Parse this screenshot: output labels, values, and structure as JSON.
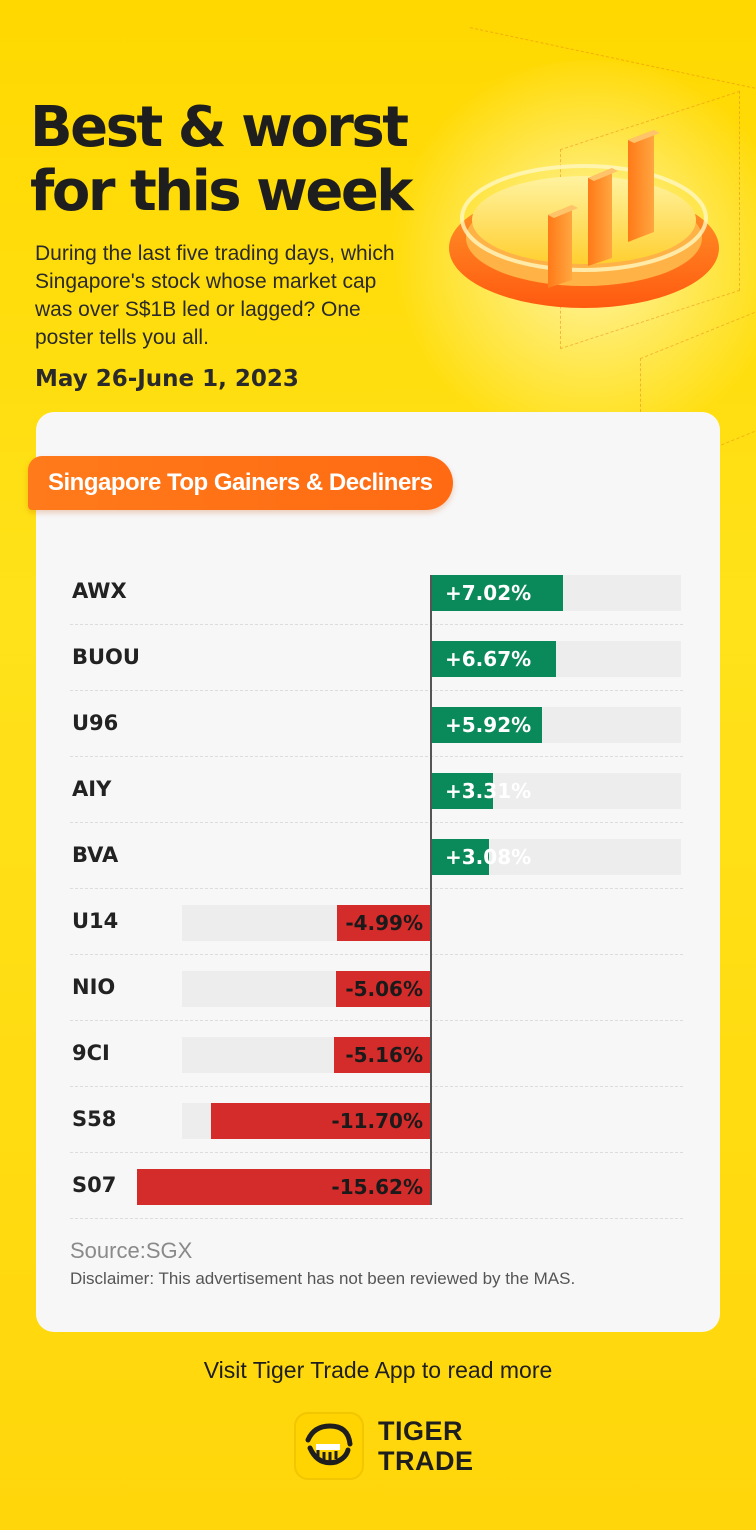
{
  "header": {
    "title": "Best & worst for this week",
    "subtitle": "During the last five trading days, which Singapore's stock whose market cap was over S$1B led or lagged? One poster tells you all.",
    "date_range": "May 26-June 1, 2023"
  },
  "card": {
    "tag_label": "Singapore Top Gainers & Decliners"
  },
  "chart_data": {
    "type": "bar",
    "orientation": "horizontal-diverging",
    "categories": [
      "AWX",
      "BUOU",
      "U96",
      "AIY",
      "BVA",
      "U14",
      "NIO",
      "9CI",
      "S58",
      "S07"
    ],
    "values": [
      7.02,
      6.67,
      5.92,
      3.31,
      3.08,
      -4.99,
      -5.06,
      -5.16,
      -11.7,
      -15.62
    ],
    "labels": [
      "+7.02%",
      "+6.67%",
      "+5.92%",
      "+3.31%",
      "+3.08%",
      "-4.99%",
      "-5.06%",
      "-5.16%",
      "-11.70%",
      "-15.62%"
    ],
    "unit": "%",
    "xlim": [
      -16,
      16
    ],
    "colors": {
      "positive": "#0a8a5a",
      "negative": "#d42b2b",
      "track": "#ededed"
    }
  },
  "footer": {
    "source": "Source:SGX",
    "disclaimer": "Disclaimer: This advertisement has not been reviewed by the MAS.",
    "visit_text": "Visit Tiger Trade App to read more",
    "brand_line1": "TIGER",
    "brand_line2": "TRADE"
  },
  "colors": {
    "background": "#ffd800",
    "accent": "#ff6a12",
    "card": "#f7f7f8"
  }
}
